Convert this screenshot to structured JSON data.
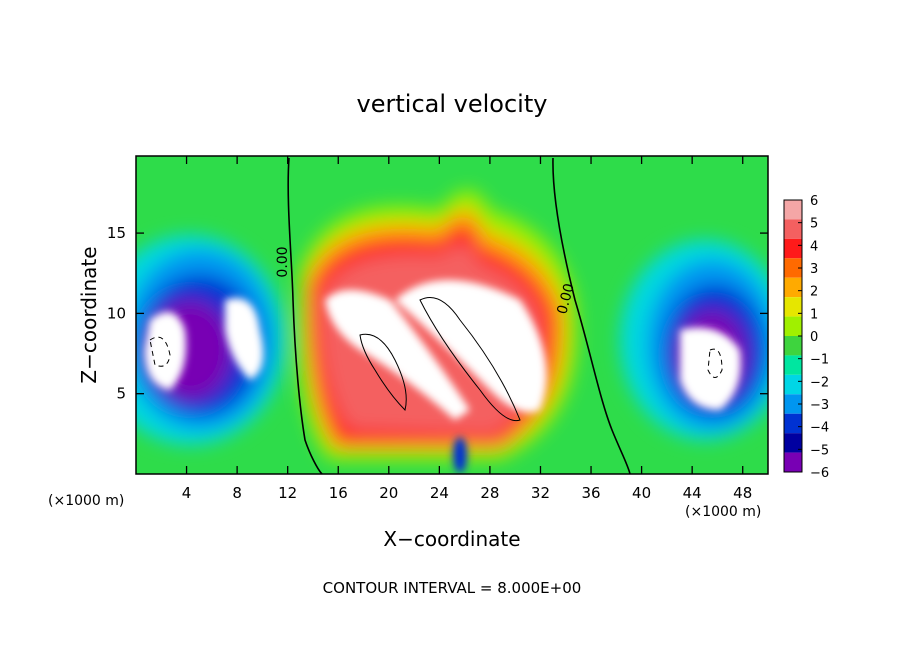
{
  "chart_data": {
    "type": "heatmap",
    "title": "vertical velocity",
    "xlabel": "X−coordinate",
    "ylabel": "Z−coordinate",
    "x_unit_left": "(×1000 m)",
    "x_unit_right": "(×1000 m)",
    "xlim": [
      0,
      50
    ],
    "ylim": [
      0,
      19.8
    ],
    "x_ticks": [
      4,
      8,
      12,
      16,
      20,
      24,
      28,
      32,
      36,
      40,
      44,
      48
    ],
    "y_ticks": [
      5,
      10,
      15
    ],
    "colorbar": {
      "labels": [
        "6",
        "5",
        "4",
        "3",
        "2",
        "1",
        "0",
        "−1",
        "−2",
        "−3",
        "−4",
        "−5",
        "−6"
      ],
      "min": -6,
      "max": 6,
      "colors": [
        "#f4a6a6",
        "#f46060",
        "#ff1a1a",
        "#ff6a00",
        "#ffaa00",
        "#e6e600",
        "#a0f000",
        "#3ed43e",
        "#00e6a0",
        "#00d6e6",
        "#0096f0",
        "#0032d2",
        "#0000a0",
        "#7800b4"
      ]
    },
    "zero_contour_label": "0.00",
    "footer": "CONTOUR INTERVAL = 8.000E+00",
    "features": [
      {
        "name": "updraft-core",
        "x": 24,
        "z": 9,
        "value": 8
      },
      {
        "name": "downdraft-left",
        "x": 5,
        "z": 8,
        "value": -8
      },
      {
        "name": "downdraft-right",
        "x": 45,
        "z": 6,
        "value": -8
      },
      {
        "name": "zero-contour-left",
        "x": 12.5,
        "z": 12
      },
      {
        "name": "zero-contour-right",
        "x": 34.5,
        "z": 11
      }
    ]
  }
}
